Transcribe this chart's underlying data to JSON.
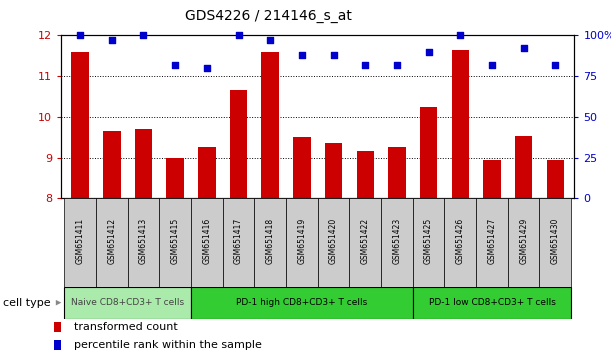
{
  "title": "GDS4226 / 214146_s_at",
  "samples": [
    "GSM651411",
    "GSM651412",
    "GSM651413",
    "GSM651415",
    "GSM651416",
    "GSM651417",
    "GSM651418",
    "GSM651419",
    "GSM651420",
    "GSM651422",
    "GSM651423",
    "GSM651425",
    "GSM651426",
    "GSM651427",
    "GSM651429",
    "GSM651430"
  ],
  "bar_values": [
    11.6,
    9.65,
    9.7,
    9.0,
    9.25,
    10.65,
    11.6,
    9.5,
    9.35,
    9.15,
    9.27,
    10.25,
    11.65,
    8.95,
    9.52,
    8.95
  ],
  "percentile_values": [
    100,
    97,
    100,
    82,
    80,
    100,
    97,
    88,
    88,
    82,
    82,
    90,
    100,
    82,
    92,
    82
  ],
  "bar_color": "#cc0000",
  "percentile_color": "#0000cc",
  "ylim": [
    8,
    12
  ],
  "ylim_right": [
    0,
    100
  ],
  "yticks_left": [
    8,
    9,
    10,
    11,
    12
  ],
  "yticks_right": [
    0,
    25,
    50,
    75,
    100
  ],
  "ytick_labels_right": [
    "0",
    "25",
    "50",
    "75",
    "100%"
  ],
  "grid_ticks": [
    9,
    10,
    11
  ],
  "cell_groups": [
    {
      "label": "Naive CD8+CD3+ T cells",
      "start": 0,
      "end": 4,
      "color": "#aaeaaa",
      "text_color": "#444444"
    },
    {
      "label": "PD-1 high CD8+CD3+ T cells",
      "start": 4,
      "end": 11,
      "color": "#33cc33",
      "text_color": "#000000"
    },
    {
      "label": "PD-1 low CD8+CD3+ T cells",
      "start": 11,
      "end": 16,
      "color": "#33cc33",
      "text_color": "#000000"
    }
  ],
  "cell_type_label": "cell type",
  "legend_bar_label": "transformed count",
  "legend_pct_label": "percentile rank within the sample",
  "bar_width": 0.55,
  "tick_color_left": "#cc0000",
  "tick_color_right": "#0000cc",
  "sample_box_color": "#cccccc"
}
